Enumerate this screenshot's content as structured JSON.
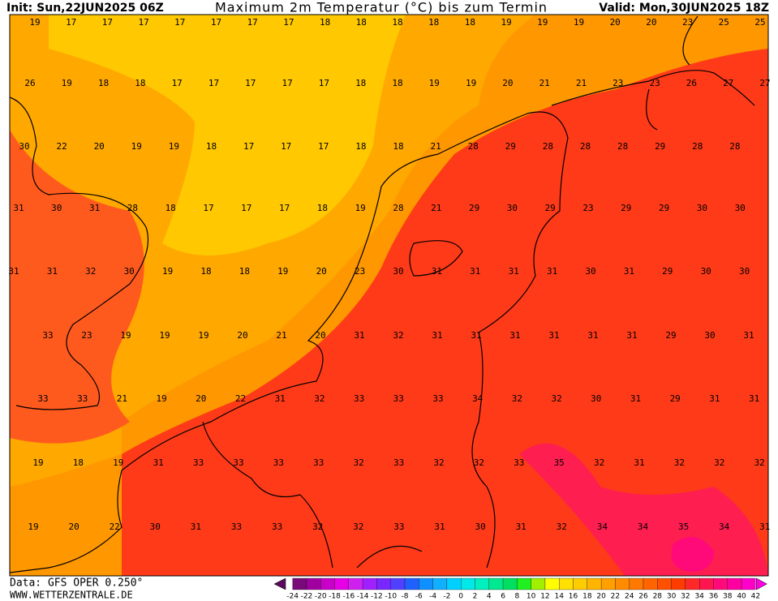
{
  "header": {
    "init": "Init: Sun,22JUN2025 06Z",
    "title": "Maximum 2m Temperatur (°C) bis zum Termin",
    "valid": "Valid: Mon,30JUN2025 18Z"
  },
  "map_labels": [
    [
      19,
      17,
      17,
      17,
      17,
      17,
      17,
      17,
      18,
      18,
      18,
      18,
      18,
      19,
      19,
      19,
      20,
      20,
      23,
      25,
      25
    ],
    [
      26,
      19,
      18,
      18,
      17,
      17,
      17,
      17,
      17,
      18,
      18,
      19,
      19,
      20,
      21,
      21,
      23,
      23,
      26,
      27,
      27
    ],
    [
      30,
      22,
      20,
      19,
      19,
      18,
      17,
      17,
      17,
      18,
      18,
      21,
      28,
      29,
      28,
      28,
      28,
      29,
      28,
      28
    ],
    [
      31,
      30,
      31,
      28,
      18,
      17,
      17,
      17,
      18,
      19,
      28,
      21,
      29,
      30,
      29,
      23,
      29,
      29,
      30,
      30
    ],
    [
      31,
      31,
      32,
      30,
      19,
      18,
      18,
      19,
      20,
      23,
      30,
      31,
      31,
      31,
      31,
      30,
      31,
      29,
      30,
      30
    ],
    [
      33,
      23,
      19,
      19,
      19,
      20,
      21,
      20,
      31,
      32,
      31,
      31,
      31,
      31,
      31,
      31,
      29,
      30,
      31
    ],
    [
      33,
      33,
      21,
      19,
      20,
      22,
      31,
      32,
      33,
      33,
      33,
      34,
      32,
      32,
      30,
      31,
      29,
      31,
      31
    ],
    [
      19,
      18,
      19,
      31,
      33,
      33,
      33,
      33,
      32,
      33,
      32,
      32,
      33,
      35,
      32,
      31,
      32,
      32,
      32
    ],
    [
      19,
      20,
      22,
      30,
      31,
      33,
      33,
      32,
      32,
      33,
      31,
      30,
      31,
      32,
      34,
      34,
      35,
      34,
      31
    ]
  ],
  "footer": {
    "data": "Data: GFS OPER 0.250°",
    "site": "WWW.WETTERZENTRALE.DE"
  },
  "colorbar": {
    "labels": [
      -24,
      -22,
      -20,
      -18,
      -16,
      -14,
      -12,
      -10,
      -8,
      -6,
      -4,
      -2,
      0,
      2,
      4,
      6,
      8,
      10,
      12,
      14,
      16,
      18,
      20,
      22,
      24,
      26,
      28,
      30,
      32,
      34,
      36,
      38,
      40,
      42
    ],
    "colors": [
      "#5a0a5a",
      "#7a0a7a",
      "#a000a0",
      "#c800c8",
      "#e600e6",
      "#d020f0",
      "#a020ff",
      "#7828ff",
      "#5040ff",
      "#2060ff",
      "#1090ff",
      "#10b0ff",
      "#00d0ff",
      "#00e8e8",
      "#00f0c0",
      "#00e890",
      "#00e060",
      "#20f020",
      "#a0f000",
      "#ffff00",
      "#ffe000",
      "#ffcc00",
      "#ffb400",
      "#ffa000",
      "#ff8c00",
      "#ff7800",
      "#ff6400",
      "#ff5000",
      "#ff3c00",
      "#ff2828",
      "#ff1450",
      "#ff0a78",
      "#ff00a0",
      "#ff00c8",
      "#ff00e0"
    ]
  }
}
